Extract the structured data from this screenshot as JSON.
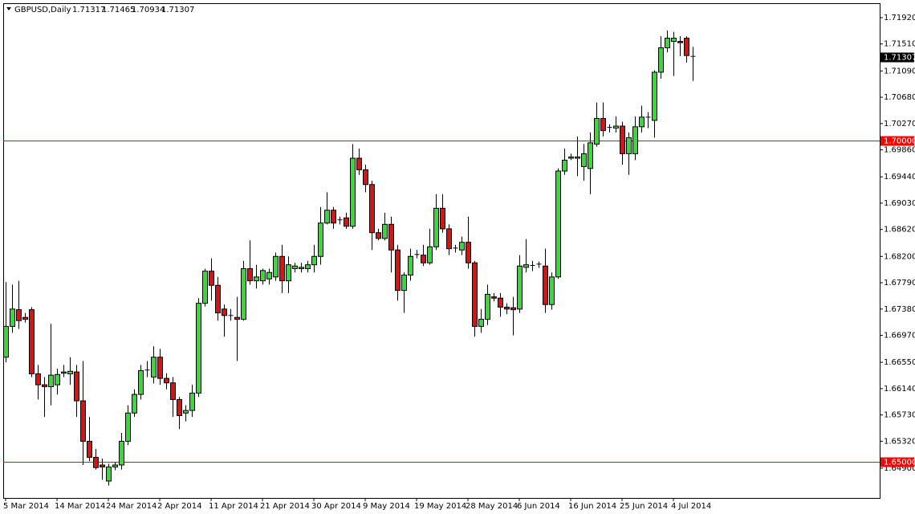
{
  "chart_data": {
    "type": "candlestick",
    "title": "GBPUSD,Daily",
    "categories": [
      "5 Mar 2014",
      null,
      null,
      null,
      null,
      null,
      null,
      null,
      "14 Mar 2014",
      null,
      null,
      null,
      null,
      null,
      null,
      null,
      "24 Mar 2014",
      null,
      null,
      null,
      null,
      null,
      null,
      null,
      "2 Apr 2014",
      null,
      null,
      null,
      null,
      null,
      null,
      null,
      "11 Apr 2014",
      null,
      null,
      null,
      null,
      null,
      null,
      null,
      "21 Apr 2014",
      null,
      null,
      null,
      null,
      null,
      null,
      null,
      "30 Apr 2014",
      null,
      null,
      null,
      null,
      null,
      null,
      null,
      "9 May 2014",
      null,
      null,
      null,
      null,
      null,
      null,
      null,
      "19 May 2014",
      null,
      null,
      null,
      null,
      null,
      null,
      null,
      "28 May 2014",
      null,
      null,
      null,
      null,
      null,
      null,
      null,
      "6 Jun 2014",
      null,
      null,
      null,
      null,
      null,
      null,
      null,
      "16 Jun 2014",
      null,
      null,
      null,
      null,
      null,
      null,
      null,
      "25 Jun 2014",
      null,
      null,
      null,
      null,
      null,
      null,
      null,
      "4 Jul 2014",
      null,
      null,
      null
    ],
    "open": [
      1.6663,
      1.6711,
      1.6737,
      1.6725,
      1.6737,
      1.6637,
      1.662,
      1.6617,
      1.662,
      1.6638,
      1.6637,
      1.664,
      1.6595,
      1.6532,
      1.6507,
      1.6495,
      1.647,
      1.6492,
      1.6495,
      1.6532,
      1.6576,
      1.6605,
      1.6642,
      1.6632,
      1.6663,
      1.663,
      1.6623,
      1.6597,
      1.6576,
      1.658,
      1.6607,
      1.6747,
      1.6797,
      1.6775,
      1.6738,
      1.6728,
      1.6725,
      1.6722,
      1.6801,
      1.6782,
      1.6782,
      1.6785,
      1.6788,
      1.682,
      1.6782,
      1.6801,
      1.6801,
      1.6801,
      1.6807,
      1.682,
      1.6872,
      1.6892,
      1.6876,
      1.688,
      1.6867,
      1.6973,
      1.6955,
      1.6932,
      1.6857,
      1.6848,
      1.687,
      1.683,
      1.6767,
      1.6791,
      1.6822,
      1.6822,
      1.681,
      1.6835,
      1.6895,
      1.6863,
      1.6832,
      1.683,
      1.6842,
      1.681,
      1.6711,
      1.6722,
      1.6757,
      1.6755,
      1.6741,
      1.674,
      1.6738,
      1.6803,
      1.6805,
      1.6807,
      1.6805,
      1.6745,
      1.6788,
      1.6953,
      1.6973,
      1.6973,
      1.696,
      1.6957,
      1.6995,
      1.7035,
      1.702,
      1.702,
      1.7023,
      1.698,
      1.698,
      1.7022,
      1.7036,
      1.7032,
      1.7107,
      1.7145,
      1.7155,
      1.7155,
      1.716,
      1.71317
    ],
    "high": [
      1.678,
      1.6776,
      1.6782,
      1.6732,
      1.6741,
      1.6651,
      1.6632,
      1.6715,
      1.6645,
      1.6651,
      1.6663,
      1.6651,
      1.6657,
      1.657,
      1.652,
      1.6505,
      1.6497,
      1.65,
      1.6545,
      1.6588,
      1.6613,
      1.6651,
      1.6657,
      1.668,
      1.6676,
      1.6638,
      1.6632,
      1.6601,
      1.6588,
      1.662,
      1.6755,
      1.6801,
      1.6817,
      1.6788,
      1.6745,
      1.6738,
      1.6757,
      1.6813,
      1.6845,
      1.6807,
      1.6801,
      1.6801,
      1.6826,
      1.6838,
      1.682,
      1.681,
      1.681,
      1.6813,
      1.6838,
      1.6897,
      1.692,
      1.6897,
      1.6882,
      1.6888,
      1.6995,
      1.6988,
      1.6963,
      1.6938,
      1.6863,
      1.6888,
      1.6882,
      1.6838,
      1.6795,
      1.6832,
      1.683,
      1.6838,
      1.6863,
      1.6917,
      1.6917,
      1.687,
      1.6838,
      1.6851,
      1.6882,
      1.6813,
      1.6738,
      1.6776,
      1.6763,
      1.6763,
      1.6747,
      1.6757,
      1.6822,
      1.6847,
      1.6813,
      1.6812,
      1.6832,
      1.6795,
      1.6957,
      1.6988,
      1.698,
      1.7007,
      1.6995,
      1.7013,
      1.706,
      1.706,
      1.7026,
      1.7038,
      1.703,
      1.7013,
      1.7038,
      1.7055,
      1.7045,
      1.711,
      1.7163,
      1.7172,
      1.717,
      1.7163,
      1.7163,
      1.71465
    ],
    "low": [
      1.6655,
      1.6701,
      1.6707,
      1.6717,
      1.6632,
      1.6597,
      1.657,
      1.6588,
      1.6605,
      1.6632,
      1.662,
      1.657,
      1.6495,
      1.6501,
      1.6488,
      1.6472,
      1.6463,
      1.6487,
      1.6488,
      1.6526,
      1.657,
      1.6597,
      1.6632,
      1.6622,
      1.662,
      1.6613,
      1.657,
      1.6551,
      1.6563,
      1.657,
      1.6601,
      1.6742,
      1.6751,
      1.672,
      1.6695,
      1.672,
      1.6657,
      1.672,
      1.6776,
      1.677,
      1.6776,
      1.6776,
      1.6782,
      1.6763,
      1.6763,
      1.6795,
      1.6795,
      1.6795,
      1.6795,
      1.6807,
      1.687,
      1.6863,
      1.687,
      1.6863,
      1.6863,
      1.6947,
      1.692,
      1.683,
      1.6845,
      1.6845,
      1.6795,
      1.6751,
      1.6732,
      1.6782,
      1.6817,
      1.6805,
      1.6807,
      1.683,
      1.6857,
      1.6822,
      1.6826,
      1.6822,
      1.6801,
      1.6695,
      1.6701,
      1.6713,
      1.675,
      1.6726,
      1.673,
      1.6697,
      1.6732,
      1.6795,
      1.6797,
      1.6802,
      1.6732,
      1.6737,
      1.6785,
      1.6947,
      1.697,
      1.6945,
      1.6938,
      1.6917,
      1.6991,
      1.7007,
      1.7013,
      1.7013,
      1.6963,
      1.6947,
      1.697,
      1.7013,
      1.702,
      1.7005,
      1.7097,
      1.7138,
      1.7101,
      1.7132,
      1.7122,
      1.70934
    ],
    "close": [
      1.6711,
      1.6738,
      1.672,
      1.6722,
      1.6637,
      1.662,
      1.6617,
      1.6635,
      1.6636,
      1.664,
      1.6641,
      1.6595,
      1.6532,
      1.6507,
      1.6491,
      1.6492,
      1.6492,
      1.6495,
      1.6532,
      1.6576,
      1.6605,
      1.6642,
      1.6643,
      1.6663,
      1.663,
      1.6623,
      1.6597,
      1.6572,
      1.658,
      1.6607,
      1.6747,
      1.6797,
      1.6775,
      1.6732,
      1.6728,
      1.6727,
      1.6722,
      1.6801,
      1.6782,
      1.6788,
      1.6798,
      1.6795,
      1.682,
      1.6782,
      1.6807,
      1.6805,
      1.6803,
      1.6807,
      1.682,
      1.6872,
      1.6892,
      1.6872,
      1.6877,
      1.6867,
      1.6973,
      1.6955,
      1.6932,
      1.6857,
      1.6848,
      1.687,
      1.683,
      1.6767,
      1.6791,
      1.682,
      1.6823,
      1.681,
      1.6835,
      1.6895,
      1.6863,
      1.6832,
      1.6833,
      1.6842,
      1.681,
      1.6711,
      1.6722,
      1.6761,
      1.6755,
      1.6741,
      1.6738,
      1.6737,
      1.6805,
      1.6807,
      1.6806,
      1.6808,
      1.6745,
      1.6788,
      1.6953,
      1.697,
      1.6975,
      1.6975,
      1.698,
      1.6997,
      1.7035,
      1.7016,
      1.7021,
      1.7023,
      1.698,
      1.7005,
      1.7022,
      1.7037,
      1.7037,
      1.7107,
      1.7145,
      1.716,
      1.716,
      1.7153,
      1.7133,
      1.71307
    ],
    "up_color": "#33dd33",
    "down_color": "#dd1111",
    "line_color": "#ff0000",
    "ylim": [
      1.64437,
      1.72145
    ],
    "yticks": [
      {
        "value": 1.7192,
        "label": "1.71920"
      },
      {
        "value": 1.7151,
        "label": "1.71510"
      },
      {
        "value": 1.7109,
        "label": "1.71090"
      },
      {
        "value": 1.7068,
        "label": "1.70680"
      },
      {
        "value": 1.7027,
        "label": "1.70270"
      },
      {
        "value": 1.6986,
        "label": "1.69860"
      },
      {
        "value": 1.6944,
        "label": "1.69440"
      },
      {
        "value": 1.6903,
        "label": "1.69030"
      },
      {
        "value": 1.6862,
        "label": "1.68620"
      },
      {
        "value": 1.682,
        "label": "1.68200"
      },
      {
        "value": 1.6779,
        "label": "1.67790"
      },
      {
        "value": 1.6738,
        "label": "1.67380"
      },
      {
        "value": 1.6697,
        "label": "1.66970"
      },
      {
        "value": 1.6655,
        "label": "1.66550"
      },
      {
        "value": 1.6614,
        "label": "1.66140"
      },
      {
        "value": 1.6573,
        "label": "1.65730"
      },
      {
        "value": 1.6532,
        "label": "1.65320"
      },
      {
        "value": 1.649,
        "label": "1.64900"
      }
    ],
    "hlines": [
      {
        "value": 1.7,
        "label": "1.70000"
      },
      {
        "value": 1.65,
        "label": "1.65000"
      }
    ],
    "grid": false
  }
}
